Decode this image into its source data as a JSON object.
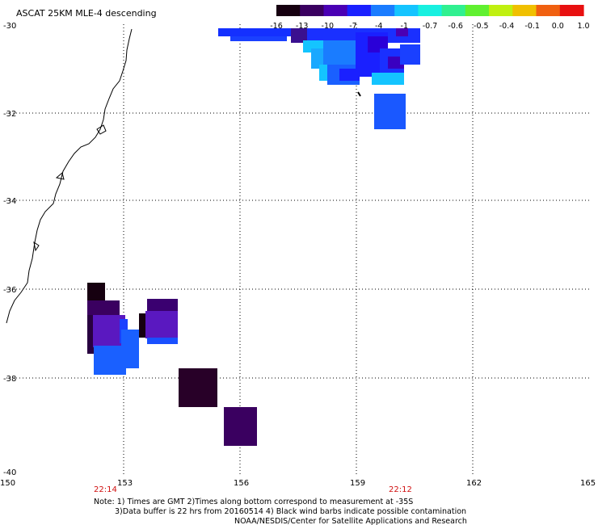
{
  "title": "ASCAT 25KM MLE-4 descending",
  "colorbar": {
    "labels": [
      "-16",
      "-13",
      "-10",
      "-7",
      "-4",
      "-1",
      "-0.7",
      "-0.6",
      "-0.5",
      "-0.4",
      "-0.1",
      "0.0",
      "1.0"
    ],
    "colors": [
      "#160010",
      "#3a0060",
      "#4a00b4",
      "#1a20ff",
      "#1a7cff",
      "#14c4ff",
      "#18f0e0",
      "#30f090",
      "#60f030",
      "#c0f010",
      "#f0c000",
      "#f06010",
      "#e81010"
    ]
  },
  "axes": {
    "lon_ticks": [
      "150",
      "153",
      "156",
      "159",
      "162",
      "165"
    ],
    "lat_ticks": [
      "-30",
      "-32",
      "-34",
      "-36",
      "-38",
      "-40"
    ]
  },
  "times": {
    "left": "22:14",
    "right": "22:12"
  },
  "note": {
    "line1": "Note: 1) Times are GMT 2)Times along bottom correspond to measurement at -35S",
    "line2": "3)Data buffer is 22 hrs from 20160514 4) Black wind barbs indicate possible contamination",
    "line3": "NOAA/NESDIS/Center for Satellite Applications and Research"
  },
  "colors": {
    "time_label": "#d01010",
    "grid": "#000000",
    "coastline": "#000000"
  }
}
